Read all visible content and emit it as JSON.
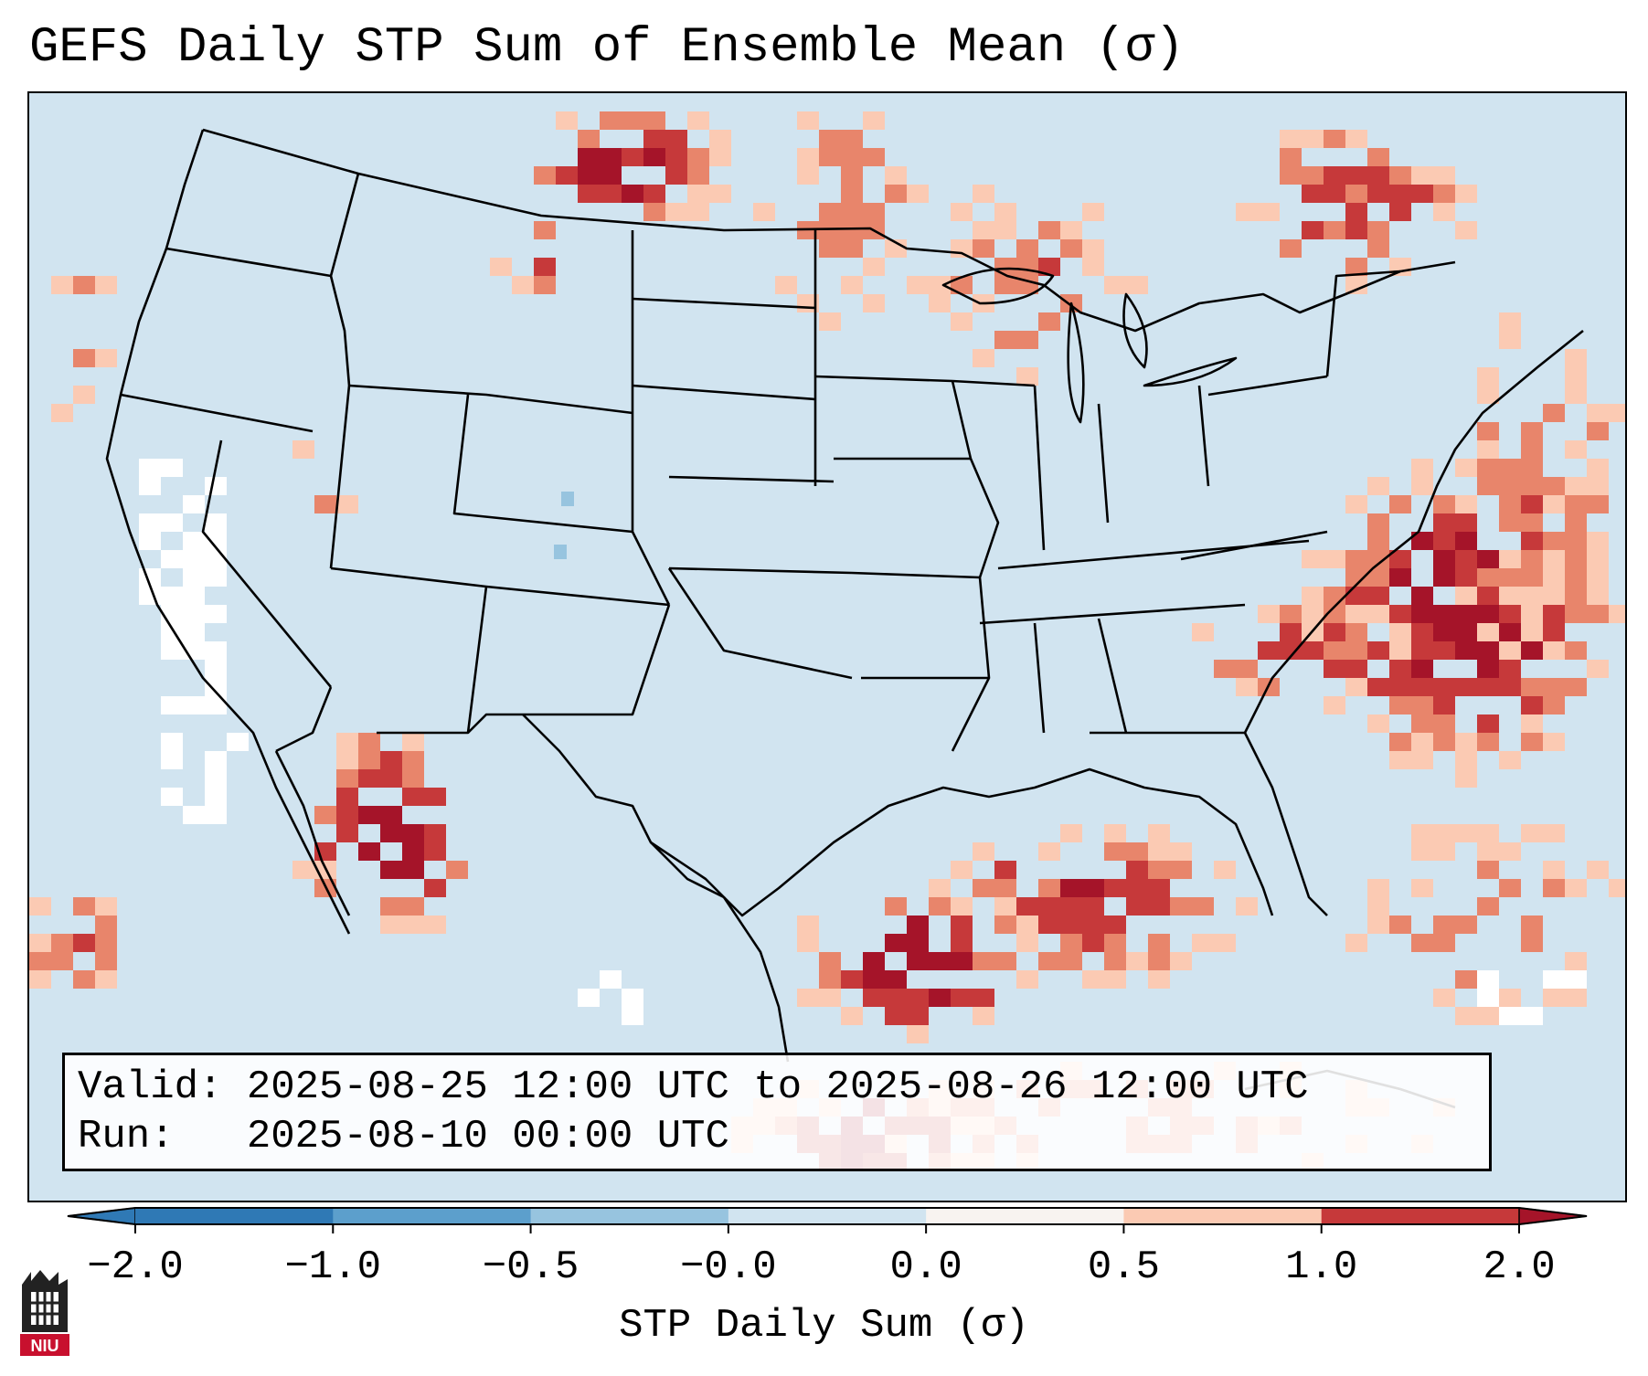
{
  "title": "GEFS Daily STP Sum of Ensemble Mean (σ)",
  "info": {
    "valid_line": "Valid: 2025-08-25 12:00 UTC to 2025-08-26 12:00 UTC",
    "run_line": "Run:   2025-08-10 00:00 UTC"
  },
  "colorbar": {
    "label": "STP Daily Sum (σ)",
    "ticks": [
      "−2.0",
      "−1.0",
      "−0.5",
      "−0.0",
      "0.0",
      "0.5",
      "1.0",
      "2.0"
    ],
    "bins": [
      {
        "color": "#2f79b5"
      },
      {
        "color": "#5c9fcc"
      },
      {
        "color": "#97c4df"
      },
      {
        "color": "#d1e4f0"
      },
      {
        "color": "#f8f3f0"
      },
      {
        "color": "#fbcab3"
      },
      {
        "color": "#e8856b"
      },
      {
        "color": "#c6393a"
      },
      {
        "color": "#a51429"
      }
    ],
    "under_color": "#2f79b5",
    "over_color": "#a51429"
  },
  "map": {
    "background_color": "#d1e4f0",
    "border_color": "#000000"
  },
  "logo": {
    "text": "NIU",
    "color": "#c8102e"
  }
}
